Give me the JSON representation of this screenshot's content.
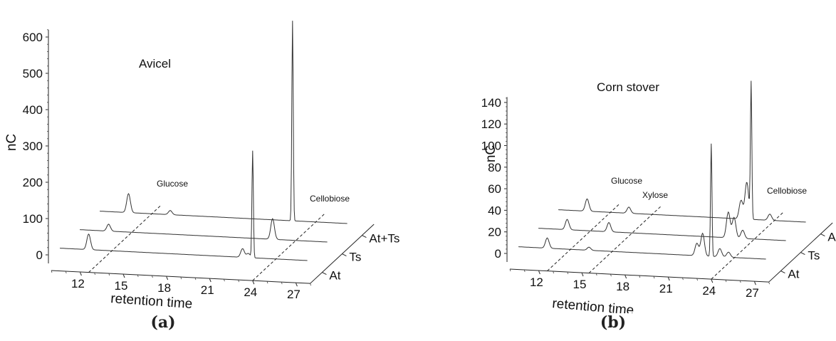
{
  "chart_data": [
    {
      "type": "line",
      "panel_label": "(a)",
      "title": "Avicel",
      "xlabel": "retention time",
      "ylabel": "nC",
      "x_ticks": [
        "12",
        "15",
        "18",
        "21",
        "24",
        "27"
      ],
      "y_ticks": [
        "0",
        "100",
        "200",
        "300",
        "400",
        "500",
        "600"
      ],
      "xlim": [
        10,
        28
      ],
      "ylim": [
        -20,
        620
      ],
      "depth_labels": [
        "At",
        "Ts",
        "At+Ts"
      ],
      "annotations": [
        "Glucose",
        "Cellobiose"
      ],
      "series": [
        {
          "name": "At",
          "peaks": [
            {
              "x": 12.6,
              "y": 45
            },
            {
              "x": 23.3,
              "y": 25
            },
            {
              "x": 23.7,
              "y": 12
            },
            {
              "x": 24.0,
              "y": 310
            }
          ]
        },
        {
          "name": "Ts",
          "peaks": [
            {
              "x": 12.6,
              "y": 20
            },
            {
              "x": 24.0,
              "y": 60
            }
          ]
        },
        {
          "name": "At+Ts",
          "peaks": [
            {
              "x": 12.6,
              "y": 55
            },
            {
              "x": 15.5,
              "y": 12
            },
            {
              "x": 24.0,
              "y": 580
            }
          ]
        }
      ]
    },
    {
      "type": "line",
      "panel_label": "(b)",
      "title": "Corn stover",
      "xlabel": "retention time",
      "ylabel": "nC",
      "x_ticks": [
        "12",
        "15",
        "18",
        "21",
        "24",
        "27"
      ],
      "y_ticks": [
        "0",
        "20",
        "40",
        "60",
        "80",
        "100",
        "120",
        "140"
      ],
      "xlim": [
        10,
        28
      ],
      "ylim": [
        -5,
        145
      ],
      "depth_labels": [
        "At",
        "Ts",
        "At+Ts"
      ],
      "annotations": [
        "Glucose",
        "Xylose",
        "Cellobiose"
      ],
      "series": [
        {
          "name": "At",
          "peaks": [
            {
              "x": 12.6,
              "y": 10
            },
            {
              "x": 15.5,
              "y": 3
            },
            {
              "x": 23.0,
              "y": 12
            },
            {
              "x": 23.4,
              "y": 22
            },
            {
              "x": 24.0,
              "y": 110
            },
            {
              "x": 24.6,
              "y": 8
            },
            {
              "x": 25.2,
              "y": 5
            }
          ]
        },
        {
          "name": "Ts",
          "peaks": [
            {
              "x": 12.6,
              "y": 10
            },
            {
              "x": 15.5,
              "y": 9
            },
            {
              "x": 23.8,
              "y": 25
            },
            {
              "x": 24.2,
              "y": 20
            },
            {
              "x": 24.8,
              "y": 8
            }
          ]
        },
        {
          "name": "At+Ts",
          "peaks": [
            {
              "x": 12.6,
              "y": 12
            },
            {
              "x": 15.5,
              "y": 6
            },
            {
              "x": 23.3,
              "y": 18
            },
            {
              "x": 23.7,
              "y": 36
            },
            {
              "x": 24.0,
              "y": 133
            },
            {
              "x": 25.3,
              "y": 6
            }
          ]
        }
      ]
    }
  ]
}
